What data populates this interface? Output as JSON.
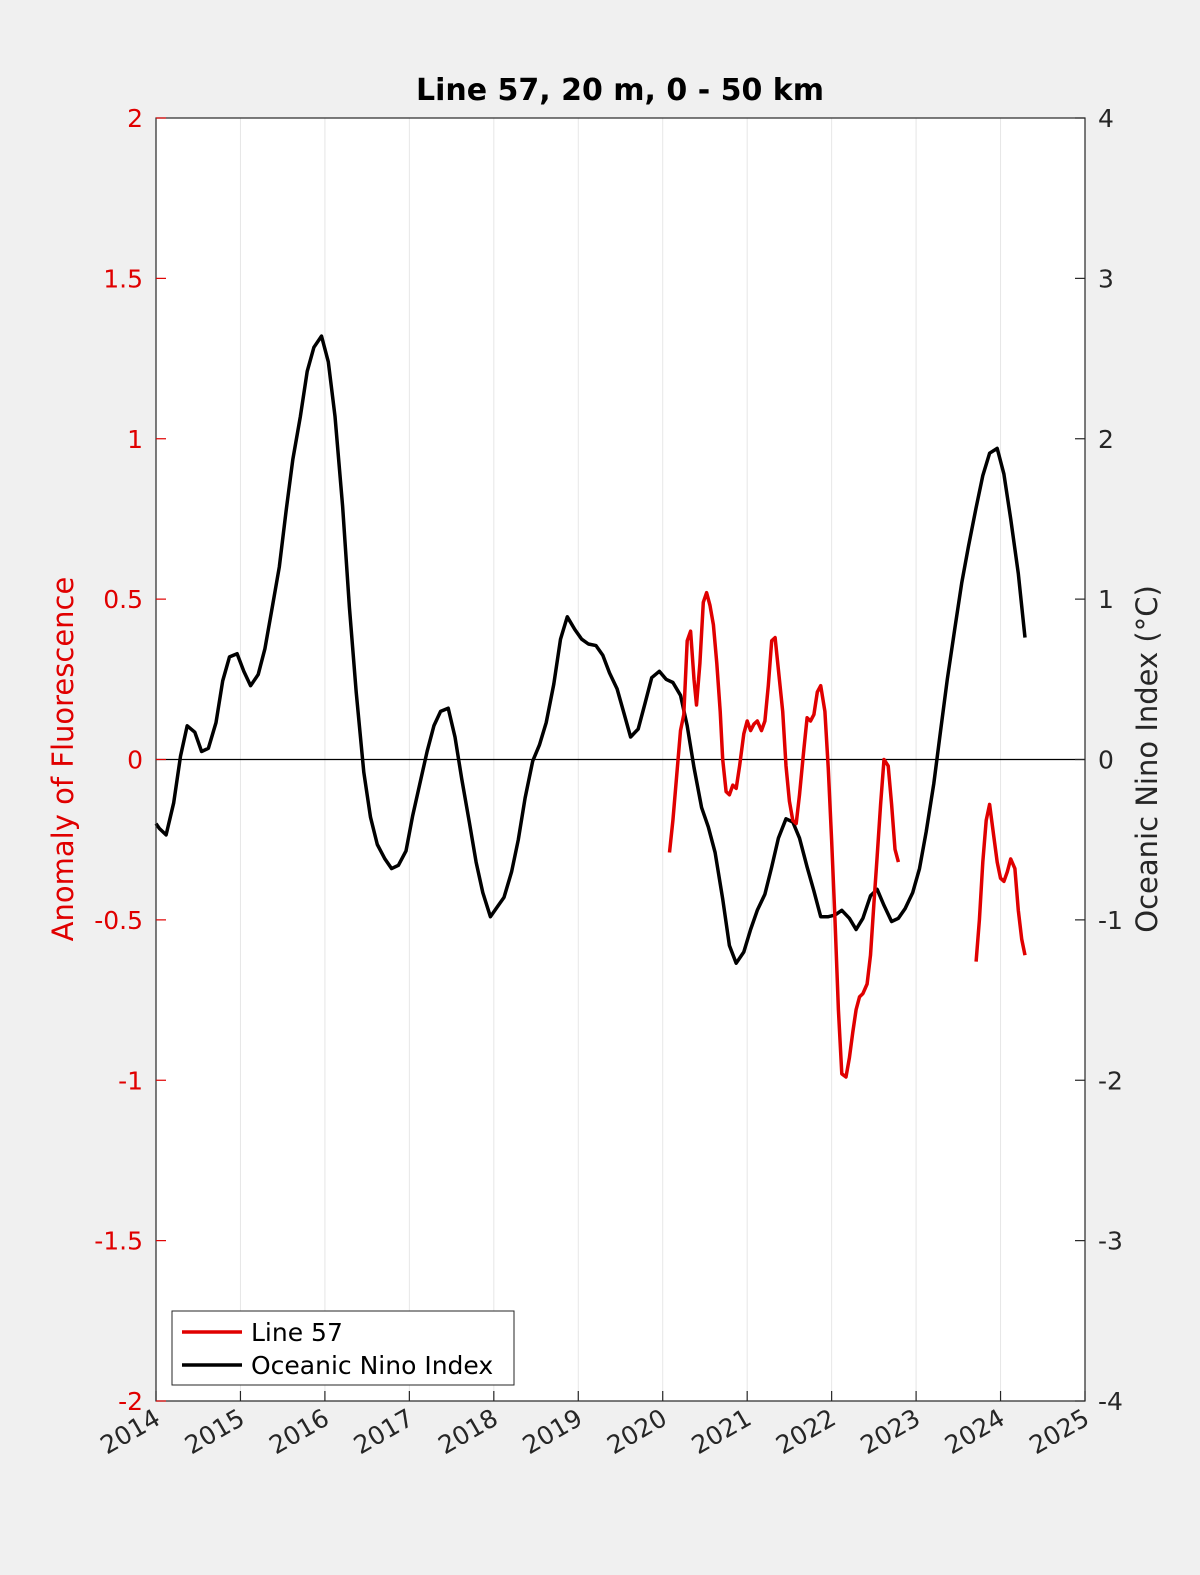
{
  "chart_data": {
    "type": "line",
    "title": "Line 57, 20 m, 0 - 50 km",
    "xlim": [
      2014,
      2025
    ],
    "x_ticks": [
      "2014",
      "2015",
      "2016",
      "2017",
      "2018",
      "2019",
      "2020",
      "2021",
      "2022",
      "2023",
      "2024",
      "2025"
    ],
    "y_left": {
      "label": "Anomaly of Fluorescence",
      "lim": [
        -2,
        2
      ],
      "ticks": [
        "-2",
        "-1.5",
        "-1",
        "-0.5",
        "0",
        "0.5",
        "1",
        "1.5",
        "2"
      ],
      "color": "#e00000"
    },
    "y_right": {
      "label": "Oceanic Nino Index (°C)",
      "lim": [
        -4,
        4
      ],
      "ticks": [
        "-4",
        "-3",
        "-2",
        "-1",
        "0",
        "1",
        "2",
        "3",
        "4"
      ],
      "color": "#262626"
    },
    "grid": "vertical gridlines at x ticks",
    "zero_line": true,
    "legend": {
      "location": "bottom-left",
      "entries": [
        {
          "label": "Line 57",
          "color": "#e00000"
        },
        {
          "label": "Oceanic Nino Index",
          "color": "#000000"
        }
      ]
    },
    "series": [
      {
        "name": "Oceanic Nino Index",
        "axis": "right",
        "color": "#000000",
        "points": [
          [
            2014.0,
            -0.4
          ],
          [
            2014.04,
            -0.43
          ],
          [
            2014.12,
            -0.47
          ],
          [
            2014.21,
            -0.27
          ],
          [
            2014.29,
            0.02
          ],
          [
            2014.37,
            0.21
          ],
          [
            2014.46,
            0.17
          ],
          [
            2014.54,
            0.05
          ],
          [
            2014.62,
            0.07
          ],
          [
            2014.71,
            0.23
          ],
          [
            2014.79,
            0.49
          ],
          [
            2014.87,
            0.64
          ],
          [
            2014.96,
            0.66
          ],
          [
            2015.04,
            0.55
          ],
          [
            2015.12,
            0.46
          ],
          [
            2015.21,
            0.53
          ],
          [
            2015.29,
            0.69
          ],
          [
            2015.37,
            0.93
          ],
          [
            2015.46,
            1.2
          ],
          [
            2015.54,
            1.55
          ],
          [
            2015.62,
            1.87
          ],
          [
            2015.71,
            2.14
          ],
          [
            2015.79,
            2.42
          ],
          [
            2015.87,
            2.57
          ],
          [
            2015.96,
            2.64
          ],
          [
            2016.04,
            2.48
          ],
          [
            2016.12,
            2.14
          ],
          [
            2016.21,
            1.58
          ],
          [
            2016.29,
            0.95
          ],
          [
            2016.37,
            0.42
          ],
          [
            2016.46,
            -0.08
          ],
          [
            2016.54,
            -0.36
          ],
          [
            2016.62,
            -0.53
          ],
          [
            2016.71,
            -0.62
          ],
          [
            2016.79,
            -0.68
          ],
          [
            2016.87,
            -0.66
          ],
          [
            2016.96,
            -0.57
          ],
          [
            2017.04,
            -0.35
          ],
          [
            2017.12,
            -0.16
          ],
          [
            2017.21,
            0.05
          ],
          [
            2017.29,
            0.21
          ],
          [
            2017.37,
            0.3
          ],
          [
            2017.46,
            0.32
          ],
          [
            2017.54,
            0.14
          ],
          [
            2017.62,
            -0.12
          ],
          [
            2017.71,
            -0.39
          ],
          [
            2017.79,
            -0.64
          ],
          [
            2017.87,
            -0.83
          ],
          [
            2017.96,
            -0.98
          ],
          [
            2018.04,
            -0.92
          ],
          [
            2018.12,
            -0.86
          ],
          [
            2018.21,
            -0.7
          ],
          [
            2018.29,
            -0.5
          ],
          [
            2018.37,
            -0.24
          ],
          [
            2018.46,
            -0.01
          ],
          [
            2018.54,
            0.09
          ],
          [
            2018.62,
            0.23
          ],
          [
            2018.71,
            0.47
          ],
          [
            2018.79,
            0.75
          ],
          [
            2018.87,
            0.89
          ],
          [
            2018.96,
            0.81
          ],
          [
            2019.04,
            0.75
          ],
          [
            2019.12,
            0.72
          ],
          [
            2019.21,
            0.71
          ],
          [
            2019.29,
            0.65
          ],
          [
            2019.37,
            0.54
          ],
          [
            2019.46,
            0.44
          ],
          [
            2019.54,
            0.29
          ],
          [
            2019.62,
            0.14
          ],
          [
            2019.71,
            0.19
          ],
          [
            2019.79,
            0.35
          ],
          [
            2019.87,
            0.51
          ],
          [
            2019.96,
            0.55
          ],
          [
            2020.04,
            0.5
          ],
          [
            2020.12,
            0.48
          ],
          [
            2020.21,
            0.4
          ],
          [
            2020.29,
            0.21
          ],
          [
            2020.37,
            -0.05
          ],
          [
            2020.46,
            -0.3
          ],
          [
            2020.54,
            -0.42
          ],
          [
            2020.62,
            -0.58
          ],
          [
            2020.71,
            -0.87
          ],
          [
            2020.79,
            -1.16
          ],
          [
            2020.87,
            -1.27
          ],
          [
            2020.96,
            -1.2
          ],
          [
            2021.04,
            -1.06
          ],
          [
            2021.12,
            -0.94
          ],
          [
            2021.21,
            -0.84
          ],
          [
            2021.29,
            -0.67
          ],
          [
            2021.37,
            -0.49
          ],
          [
            2021.46,
            -0.37
          ],
          [
            2021.54,
            -0.39
          ],
          [
            2021.62,
            -0.49
          ],
          [
            2021.71,
            -0.67
          ],
          [
            2021.79,
            -0.82
          ],
          [
            2021.87,
            -0.98
          ],
          [
            2021.96,
            -0.98
          ],
          [
            2022.04,
            -0.97
          ],
          [
            2022.12,
            -0.94
          ],
          [
            2022.21,
            -0.99
          ],
          [
            2022.29,
            -1.06
          ],
          [
            2022.37,
            -0.99
          ],
          [
            2022.46,
            -0.85
          ],
          [
            2022.54,
            -0.81
          ],
          [
            2022.62,
            -0.91
          ],
          [
            2022.71,
            -1.01
          ],
          [
            2022.79,
            -0.99
          ],
          [
            2022.87,
            -0.93
          ],
          [
            2022.96,
            -0.83
          ],
          [
            2023.04,
            -0.68
          ],
          [
            2023.12,
            -0.45
          ],
          [
            2023.21,
            -0.15
          ],
          [
            2023.29,
            0.18
          ],
          [
            2023.37,
            0.5
          ],
          [
            2023.46,
            0.82
          ],
          [
            2023.54,
            1.1
          ],
          [
            2023.62,
            1.33
          ],
          [
            2023.71,
            1.57
          ],
          [
            2023.79,
            1.77
          ],
          [
            2023.87,
            1.91
          ],
          [
            2023.96,
            1.94
          ],
          [
            2024.04,
            1.78
          ],
          [
            2024.12,
            1.5
          ],
          [
            2024.21,
            1.16
          ],
          [
            2024.29,
            0.76
          ]
        ]
      },
      {
        "name": "Line 57",
        "axis": "left",
        "color": "#e00000",
        "segments": [
          [
            [
              2020.08,
              -0.29
            ],
            [
              2020.12,
              -0.19
            ],
            [
              2020.21,
              0.09
            ],
            [
              2020.25,
              0.14
            ],
            [
              2020.29,
              0.37
            ],
            [
              2020.33,
              0.4
            ],
            [
              2020.37,
              0.25
            ],
            [
              2020.4,
              0.17
            ],
            [
              2020.44,
              0.3
            ],
            [
              2020.48,
              0.49
            ],
            [
              2020.52,
              0.52
            ],
            [
              2020.56,
              0.48
            ],
            [
              2020.6,
              0.42
            ],
            [
              2020.64,
              0.3
            ],
            [
              2020.68,
              0.15
            ],
            [
              2020.71,
              0.0
            ],
            [
              2020.75,
              -0.1
            ],
            [
              2020.79,
              -0.11
            ],
            [
              2020.83,
              -0.08
            ],
            [
              2020.87,
              -0.09
            ],
            [
              2020.91,
              -0.02
            ],
            [
              2020.96,
              0.08
            ],
            [
              2021.0,
              0.12
            ],
            [
              2021.04,
              0.09
            ],
            [
              2021.08,
              0.11
            ],
            [
              2021.12,
              0.12
            ],
            [
              2021.17,
              0.09
            ],
            [
              2021.21,
              0.12
            ],
            [
              2021.25,
              0.23
            ],
            [
              2021.29,
              0.37
            ],
            [
              2021.33,
              0.38
            ],
            [
              2021.37,
              0.28
            ],
            [
              2021.42,
              0.15
            ],
            [
              2021.46,
              -0.02
            ],
            [
              2021.5,
              -0.13
            ],
            [
              2021.54,
              -0.19
            ],
            [
              2021.58,
              -0.2
            ],
            [
              2021.62,
              -0.11
            ],
            [
              2021.67,
              0.03
            ],
            [
              2021.71,
              0.13
            ],
            [
              2021.75,
              0.12
            ],
            [
              2021.79,
              0.14
            ],
            [
              2021.83,
              0.21
            ],
            [
              2021.87,
              0.23
            ],
            [
              2021.92,
              0.15
            ],
            [
              2021.96,
              -0.03
            ],
            [
              2022.0,
              -0.25
            ],
            [
              2022.04,
              -0.5
            ],
            [
              2022.08,
              -0.78
            ],
            [
              2022.12,
              -0.98
            ],
            [
              2022.17,
              -0.99
            ],
            [
              2022.21,
              -0.93
            ],
            [
              2022.25,
              -0.85
            ],
            [
              2022.29,
              -0.78
            ],
            [
              2022.33,
              -0.74
            ],
            [
              2022.37,
              -0.73
            ],
            [
              2022.42,
              -0.7
            ],
            [
              2022.46,
              -0.61
            ],
            [
              2022.5,
              -0.45
            ],
            [
              2022.54,
              -0.3
            ],
            [
              2022.58,
              -0.14
            ],
            [
              2022.62,
              0.0
            ],
            [
              2022.67,
              -0.02
            ],
            [
              2022.71,
              -0.14
            ],
            [
              2022.75,
              -0.28
            ],
            [
              2022.79,
              -0.32
            ]
          ],
          [
            [
              2023.71,
              -0.63
            ],
            [
              2023.75,
              -0.5
            ],
            [
              2023.79,
              -0.32
            ],
            [
              2023.83,
              -0.19
            ],
            [
              2023.87,
              -0.14
            ],
            [
              2023.92,
              -0.24
            ],
            [
              2023.96,
              -0.32
            ],
            [
              2024.0,
              -0.37
            ],
            [
              2024.04,
              -0.38
            ],
            [
              2024.08,
              -0.35
            ],
            [
              2024.12,
              -0.31
            ],
            [
              2024.17,
              -0.34
            ],
            [
              2024.21,
              -0.47
            ],
            [
              2024.25,
              -0.56
            ],
            [
              2024.29,
              -0.61
            ]
          ]
        ]
      }
    ]
  }
}
